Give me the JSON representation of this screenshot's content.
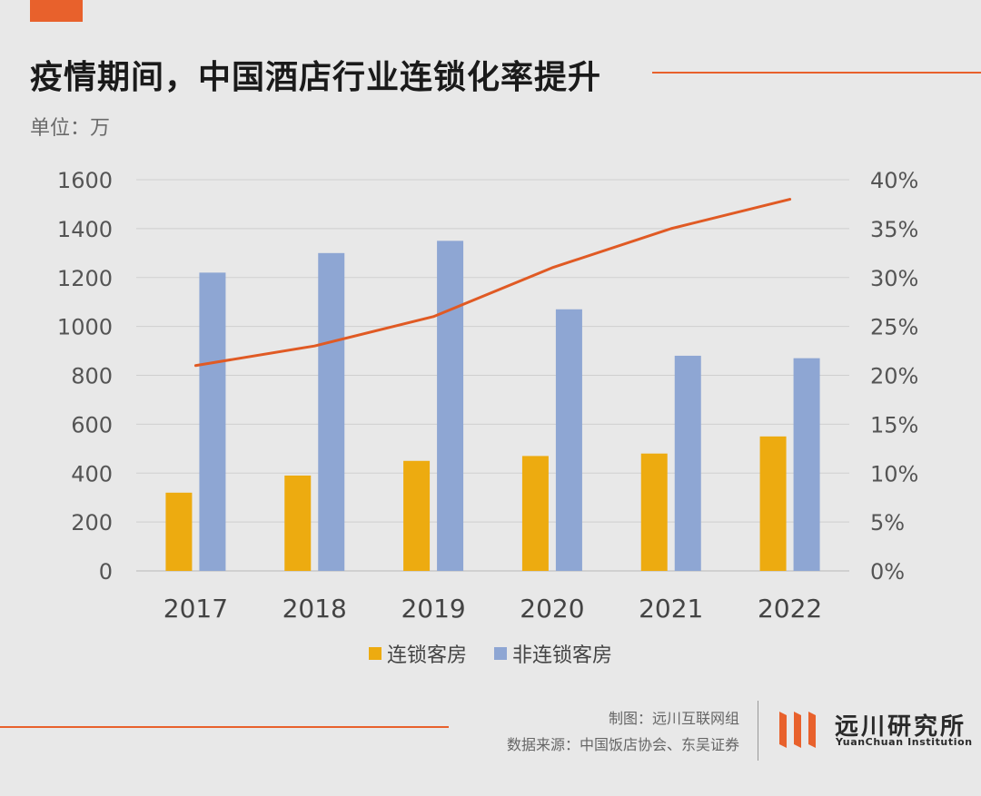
{
  "header": {
    "title": "疫情期间，中国酒店行业连锁化率提升",
    "unit": "单位：万"
  },
  "chart_data": {
    "type": "bar",
    "title": "疫情期间，中国酒店行业连锁化率提升",
    "categories": [
      "2017",
      "2018",
      "2019",
      "2020",
      "2021",
      "2022"
    ],
    "series": [
      {
        "name": "连锁客房",
        "type": "bar",
        "axis": "left",
        "color": "#edab10",
        "values": [
          320,
          390,
          450,
          470,
          480,
          550
        ]
      },
      {
        "name": "非连锁客房",
        "type": "bar",
        "axis": "left",
        "color": "#8ea6d3",
        "values": [
          1220,
          1300,
          1350,
          1070,
          880,
          870
        ]
      },
      {
        "type": "line",
        "axis": "right",
        "color": "#e05a24",
        "values": [
          0.21,
          0.23,
          0.26,
          0.31,
          0.35,
          0.38
        ]
      }
    ],
    "y_left": {
      "min": 0,
      "max": 1600,
      "ticks": [
        0,
        200,
        400,
        600,
        800,
        1000,
        1200,
        1400,
        1600
      ]
    },
    "y_right": {
      "min": 0,
      "max": 0.4,
      "ticks": [
        "0%",
        "5%",
        "10%",
        "15%",
        "20%",
        "25%",
        "30%",
        "35%",
        "40%"
      ]
    },
    "grid": true,
    "legend_position": "bottom"
  },
  "legend": {
    "items": [
      {
        "label": "连锁客房",
        "color": "#edab10"
      },
      {
        "label": "非连锁客房",
        "color": "#8ea6d3"
      }
    ]
  },
  "footer": {
    "credit": "制图：远川互联网组",
    "source": "数据来源：中国饭店协会、东吴证券",
    "logo_cn": "远川研究所",
    "logo_en": "YuanChuan Institution"
  }
}
